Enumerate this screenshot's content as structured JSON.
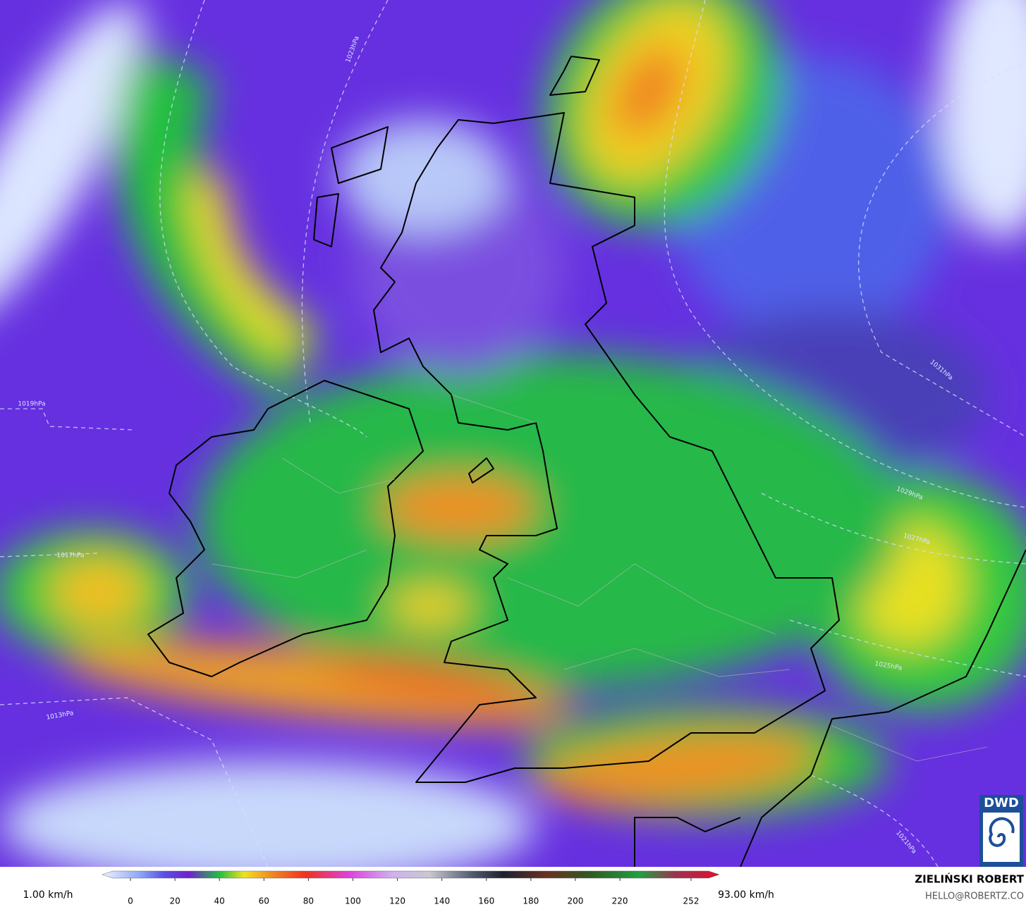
{
  "map": {
    "isobar_labels": [
      {
        "text": "1023hPa"
      },
      {
        "text": "1019hPa"
      },
      {
        "text": "1017hPa"
      },
      {
        "text": "1013hPa"
      },
      {
        "text": "1031hPa"
      },
      {
        "text": "1029hPa"
      },
      {
        "text": "1027hPa"
      },
      {
        "text": "1025hPa"
      },
      {
        "text": "1021hPa"
      }
    ],
    "logo": "DWD"
  },
  "legend": {
    "min_label": "1.00 km/h",
    "max_label": "93.00 km/h",
    "ticks": [
      0,
      20,
      40,
      60,
      80,
      100,
      120,
      140,
      160,
      180,
      200,
      220,
      252
    ]
  },
  "credit": {
    "author": "ZIELIŃSKI ROBERT",
    "contact": "HELLO@ROBERTZ.CO"
  }
}
